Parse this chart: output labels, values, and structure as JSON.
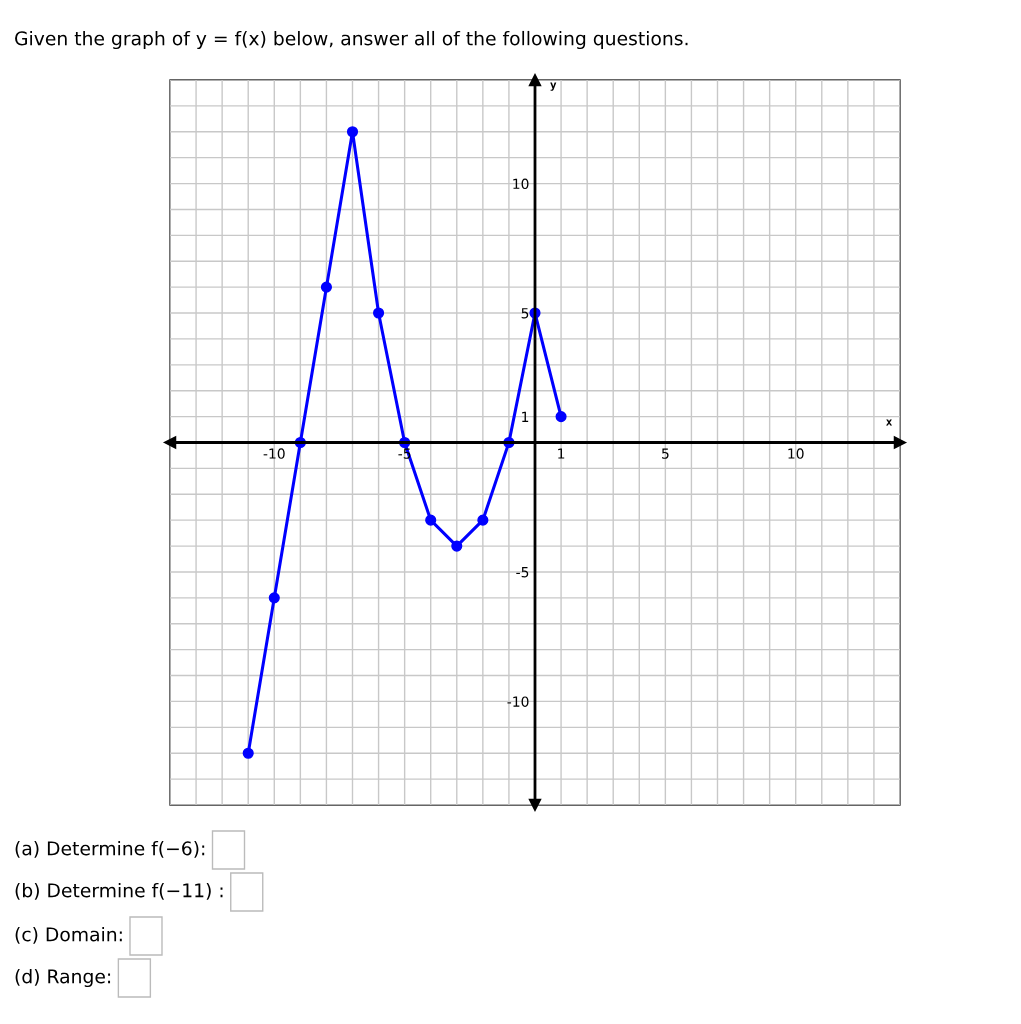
{
  "chart_data": {
    "type": "line",
    "title": "Given the graph of y = f(x) below, answer all of the following questions.",
    "xlabel": "x",
    "ylabel": "y",
    "x": [
      -11,
      -10,
      -9,
      -8,
      -7,
      -6,
      -5,
      -4,
      -3,
      -2,
      -1,
      0,
      1
    ],
    "series": [
      {
        "color": "#0000ff",
        "values": [
          -12,
          -6,
          0,
          6,
          12,
          5,
          0,
          -3,
          -4,
          -3,
          0,
          5,
          1
        ]
      }
    ],
    "marker": "circle",
    "line_style": "solid",
    "grid": true,
    "xlim": [
      -14,
      14
    ],
    "ylim": [
      -14,
      14
    ],
    "xticks": [
      {
        "value": -14,
        "label": null
      },
      {
        "value": -13,
        "label": null
      },
      {
        "value": -12,
        "label": null
      },
      {
        "value": -11,
        "label": null
      },
      -10,
      {
        "value": -9,
        "label": null
      },
      {
        "value": -8,
        "label": null
      },
      {
        "value": -7,
        "label": null
      },
      {
        "value": -6,
        "label": null
      },
      -5,
      {
        "value": -4,
        "label": null
      },
      {
        "value": -3,
        "label": null
      },
      {
        "value": -2,
        "label": null
      },
      {
        "value": -1,
        "label": null
      },
      {
        "value": 0,
        "label": null
      },
      1,
      {
        "value": 2,
        "label": null
      },
      {
        "value": 3,
        "label": null
      },
      {
        "value": 4,
        "label": null
      },
      5,
      {
        "value": 6,
        "label": null
      },
      {
        "value": 7,
        "label": null
      },
      {
        "value": 8,
        "label": null
      },
      {
        "value": 9,
        "label": null
      },
      10,
      {
        "value": 11,
        "label": null
      },
      {
        "value": 12,
        "label": null
      },
      {
        "value": 13,
        "label": null
      },
      {
        "value": 14,
        "label": null
      }
    ],
    "yticks": [
      {
        "value": -14,
        "label": null
      },
      {
        "value": -13,
        "label": null
      },
      {
        "value": -12,
        "label": null
      },
      {
        "value": -11,
        "label": null
      },
      -10,
      {
        "value": -9,
        "label": null
      },
      {
        "value": -8,
        "label": null
      },
      {
        "value": -7,
        "label": null
      },
      {
        "value": -6,
        "label": null
      },
      -5,
      {
        "value": -4,
        "label": null
      },
      {
        "value": -3,
        "label": null
      },
      {
        "value": -2,
        "label": null
      },
      {
        "value": -1,
        "label": null
      },
      {
        "value": 0,
        "label": null
      },
      1,
      {
        "value": 2,
        "label": null
      },
      {
        "value": 3,
        "label": null
      },
      {
        "value": 4,
        "label": null
      },
      5,
      {
        "value": 6,
        "label": null
      },
      {
        "value": 7,
        "label": null
      },
      {
        "value": 8,
        "label": null
      },
      {
        "value": 9,
        "label": null
      },
      10,
      {
        "value": 11,
        "label": null
      },
      {
        "value": 12,
        "label": null
      },
      {
        "value": 13,
        "label": null
      },
      {
        "value": 14,
        "label": null
      }
    ],
    "annotations": [
      "(a) Determine f(−6):",
      "(b) Determine f(−11) :",
      "(c) Domain:",
      "(d) Range:"
    ]
  }
}
